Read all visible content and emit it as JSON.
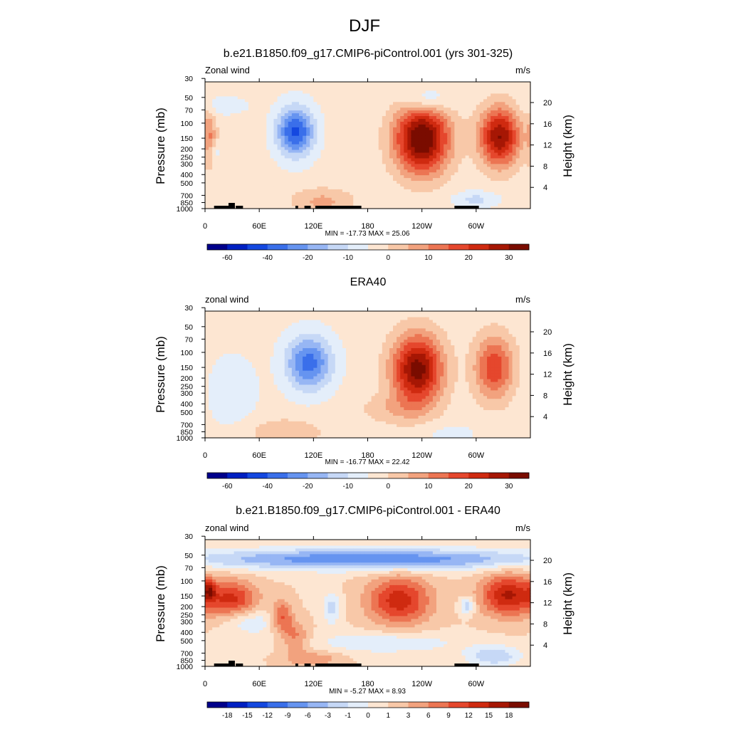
{
  "page": {
    "title": "DJF"
  },
  "colors": {
    "background": "#ffffff",
    "land": "#000000"
  },
  "chart_data": [
    {
      "type": "heatmap",
      "title": "b.e21.B1850.f09_g17.CMIP6-piControl.001 (yrs 301-325)",
      "left_string": "Zonal wind",
      "right_string": "m/s",
      "ylabel": "Pressure (mb)",
      "ylabel_right": "Height (km)",
      "x_ticks": [
        "0",
        "60E",
        "120E",
        "180",
        "120W",
        "60W"
      ],
      "y_ticks": [
        "30",
        "50",
        "70",
        "100",
        "150",
        "200",
        "250",
        "300",
        "400",
        "500",
        "700",
        "850",
        "1000"
      ],
      "height_ticks": [
        "20",
        "16",
        "12",
        "8",
        "4"
      ],
      "stats": "MIN = -17.73  MAX =  25.06",
      "colorbar_labels": [
        "-60",
        "-40",
        "-20",
        "-10",
        "0",
        "10",
        "20",
        "30"
      ],
      "min": -17.73,
      "max": 25.06,
      "show_land": true,
      "features": [
        {
          "lon": 100,
          "lev": 14.6,
          "val": -17.7,
          "sx": 20,
          "sy": 4.5
        },
        {
          "lon": 240,
          "lev": 13.2,
          "val": 25.0,
          "sx": 30,
          "sy": 6.5
        },
        {
          "lon": 326,
          "lev": 13.6,
          "val": 21.0,
          "sx": 22,
          "sy": 5.5
        },
        {
          "lon": 5,
          "lev": 13.5,
          "val": 8.0,
          "sx": 8,
          "sy": 5
        },
        {
          "lon": 130,
          "lev": 1.5,
          "val": 6.0,
          "sx": 35,
          "sy": 2.5
        },
        {
          "lon": 245,
          "lev": 20.5,
          "val": -7.0,
          "sx": 25,
          "sy": 2.5
        },
        {
          "lon": 20,
          "lev": 19.5,
          "val": -4.0,
          "sx": 25,
          "sy": 1.5
        },
        {
          "lon": 10,
          "lev": 10.8,
          "val": -4.5,
          "sx": 7,
          "sy": 1.5
        },
        {
          "lon": 300,
          "lev": 1.8,
          "val": -5.0,
          "sx": 25,
          "sy": 1.5
        }
      ]
    },
    {
      "type": "heatmap",
      "title": "ERA40",
      "left_string": "zonal wind",
      "right_string": "m/s",
      "ylabel": "Pressure (mb)",
      "ylabel_right": "Height (km)",
      "x_ticks": [
        "0",
        "60E",
        "120E",
        "180",
        "120W",
        "60W"
      ],
      "y_ticks": [
        "30",
        "50",
        "70",
        "100",
        "150",
        "200",
        "250",
        "300",
        "400",
        "500",
        "700",
        "850",
        "1000"
      ],
      "height_ticks": [
        "20",
        "16",
        "12",
        "8",
        "4"
      ],
      "stats": "MIN = -16.77  MAX =  22.42",
      "colorbar_labels": [
        "-60",
        "-40",
        "-20",
        "-10",
        "0",
        "10",
        "20",
        "30"
      ],
      "min": -16.77,
      "max": 22.42,
      "show_land": false,
      "features": [
        {
          "lon": 115,
          "lev": 14.2,
          "val": -15.0,
          "sx": 25,
          "sy": 5
        },
        {
          "lon": 235,
          "lev": 13.0,
          "val": 22.4,
          "sx": 28,
          "sy": 6.5
        },
        {
          "lon": 320,
          "lev": 13.3,
          "val": 14.0,
          "sx": 22,
          "sy": 6
        },
        {
          "lon": 30,
          "lev": 9.0,
          "val": -4.0,
          "sx": 25,
          "sy": 6
        },
        {
          "lon": 90,
          "lev": 1.2,
          "val": 5.0,
          "sx": 40,
          "sy": 2.5
        },
        {
          "lon": 210,
          "lev": 5.5,
          "val": 4.0,
          "sx": 40,
          "sy": 3
        },
        {
          "lon": 270,
          "lev": 1.0,
          "val": -2.0,
          "sx": 35,
          "sy": 2
        }
      ]
    },
    {
      "type": "heatmap",
      "title": "b.e21.B1850.f09_g17.CMIP6-piControl.001 - ERA40",
      "left_string": "zonal wind",
      "right_string": "m/s",
      "ylabel": "Pressure (mb)",
      "ylabel_right": "Height (km)",
      "x_ticks": [
        "0",
        "60E",
        "120E",
        "180",
        "120W",
        "60W"
      ],
      "y_ticks": [
        "30",
        "50",
        "70",
        "100",
        "150",
        "200",
        "250",
        "300",
        "400",
        "500",
        "700",
        "850",
        "1000"
      ],
      "height_ticks": [
        "20",
        "16",
        "12",
        "8",
        "4"
      ],
      "stats": "MIN = -5.27  MAX =  8.93",
      "colorbar_labels": [
        "-18",
        "-15",
        "-12",
        "-9",
        "-6",
        "-3",
        "-1",
        "0",
        "1",
        "3",
        "6",
        "9",
        "12",
        "15",
        "18"
      ],
      "min": -5.27,
      "max": 8.93,
      "show_land": true,
      "features": [
        {
          "lon": 180,
          "lev": 20.3,
          "val": -5.2,
          "sx": 200,
          "sy": 2.0
        },
        {
          "lon": 30,
          "lev": 12.8,
          "val": 4.5,
          "sx": 28,
          "sy": 3.5
        },
        {
          "lon": 215,
          "lev": 12.5,
          "val": 5.0,
          "sx": 35,
          "sy": 4.5
        },
        {
          "lon": 335,
          "lev": 13.5,
          "val": 5.5,
          "sx": 30,
          "sy": 4
        },
        {
          "lon": 5,
          "lev": 14.5,
          "val": 3.5,
          "sx": 6,
          "sy": 2
        },
        {
          "lon": 85,
          "lev": 9.5,
          "val": 3.5,
          "sx": 12,
          "sy": 3
        },
        {
          "lon": 100,
          "lev": 5.5,
          "val": 2.5,
          "sx": 15,
          "sy": 3
        },
        {
          "lon": 140,
          "lev": 11.0,
          "val": -2.5,
          "sx": 10,
          "sy": 3
        },
        {
          "lon": 290,
          "lev": 11.5,
          "val": -3.0,
          "sx": 8,
          "sy": 1.5
        },
        {
          "lon": 50,
          "lev": 8.5,
          "val": -2.0,
          "sx": 30,
          "sy": 2.5
        },
        {
          "lon": 200,
          "lev": 4.5,
          "val": -2.0,
          "sx": 80,
          "sy": 2
        },
        {
          "lon": 320,
          "lev": 2.0,
          "val": -3.0,
          "sx": 30,
          "sy": 2
        },
        {
          "lon": 120,
          "lev": 1.5,
          "val": 2.0,
          "sx": 30,
          "sy": 1.5
        }
      ]
    }
  ]
}
